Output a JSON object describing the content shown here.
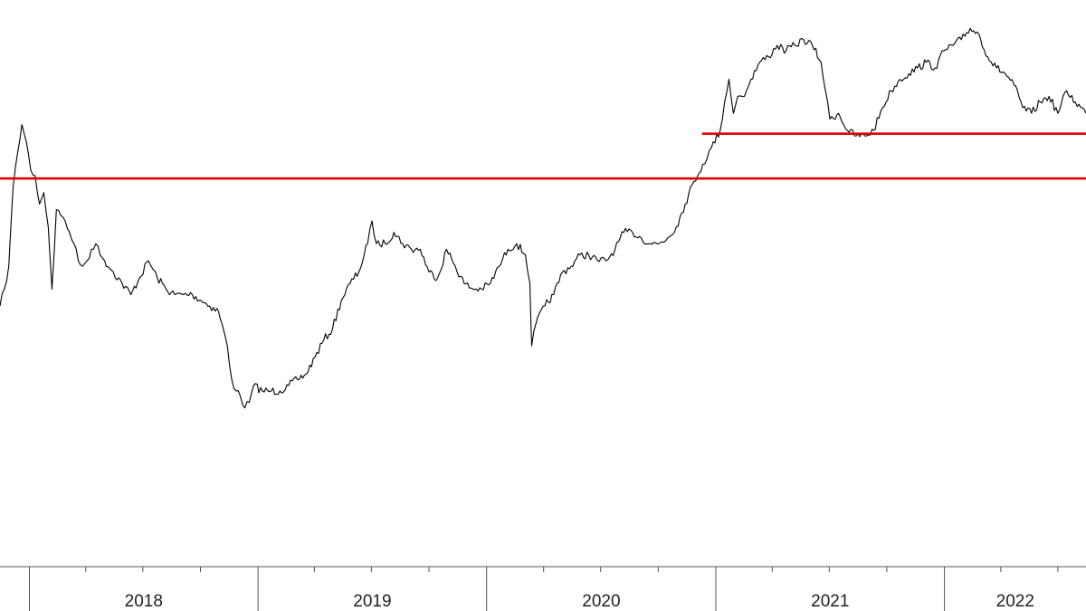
{
  "chart_data": {
    "type": "line",
    "title": "",
    "xlabel": "",
    "ylabel": "",
    "x_range": [
      "2017-11-15",
      "2022-08-15"
    ],
    "y_range": [
      0,
      100
    ],
    "y_axis_visible": false,
    "grid": false,
    "legend": "none",
    "x_tick_labels": [
      "2018",
      "2019",
      "2020",
      "2021",
      "2022"
    ],
    "series": [
      {
        "color": "#000000",
        "points": [
          [
            "2017-11-15",
            46
          ],
          [
            "2017-11-22",
            49
          ],
          [
            "2017-11-29",
            53
          ],
          [
            "2017-12-06",
            67
          ],
          [
            "2017-12-13",
            73
          ],
          [
            "2017-12-20",
            78
          ],
          [
            "2017-12-27",
            75
          ],
          [
            "2018-01-03",
            70
          ],
          [
            "2018-01-10",
            69
          ],
          [
            "2018-01-17",
            64
          ],
          [
            "2018-01-24",
            66
          ],
          [
            "2018-01-31",
            60
          ],
          [
            "2018-02-06",
            49
          ],
          [
            "2018-02-13",
            63
          ],
          [
            "2018-02-20",
            62
          ],
          [
            "2018-02-27",
            61
          ],
          [
            "2018-03-06",
            59
          ],
          [
            "2018-03-13",
            57
          ],
          [
            "2018-03-20",
            54
          ],
          [
            "2018-03-27",
            53
          ],
          [
            "2018-04-03",
            54
          ],
          [
            "2018-04-10",
            56
          ],
          [
            "2018-04-17",
            57
          ],
          [
            "2018-04-24",
            55
          ],
          [
            "2018-05-01",
            54
          ],
          [
            "2018-05-15",
            52
          ],
          [
            "2018-05-29",
            50
          ],
          [
            "2018-06-12",
            48
          ],
          [
            "2018-06-26",
            51
          ],
          [
            "2018-07-10",
            54
          ],
          [
            "2018-07-24",
            51
          ],
          [
            "2018-08-07",
            49
          ],
          [
            "2018-08-21",
            48
          ],
          [
            "2018-09-04",
            48
          ],
          [
            "2018-09-18",
            48
          ],
          [
            "2018-10-02",
            47
          ],
          [
            "2018-10-16",
            46
          ],
          [
            "2018-10-30",
            45
          ],
          [
            "2018-11-13",
            39
          ],
          [
            "2018-11-20",
            33
          ],
          [
            "2018-11-27",
            31
          ],
          [
            "2018-12-04",
            30
          ],
          [
            "2018-12-11",
            28
          ],
          [
            "2018-12-18",
            29
          ],
          [
            "2018-12-25",
            32
          ],
          [
            "2019-01-08",
            31
          ],
          [
            "2019-01-22",
            31
          ],
          [
            "2019-02-05",
            31
          ],
          [
            "2019-02-19",
            32
          ],
          [
            "2019-03-05",
            33
          ],
          [
            "2019-03-19",
            34
          ],
          [
            "2019-04-02",
            37
          ],
          [
            "2019-04-16",
            40
          ],
          [
            "2019-04-30",
            42
          ],
          [
            "2019-05-14",
            47
          ],
          [
            "2019-05-28",
            50
          ],
          [
            "2019-06-11",
            52
          ],
          [
            "2019-06-25",
            57
          ],
          [
            "2019-07-02",
            61
          ],
          [
            "2019-07-09",
            57
          ],
          [
            "2019-07-23",
            57
          ],
          [
            "2019-08-06",
            59
          ],
          [
            "2019-08-20",
            57
          ],
          [
            "2019-09-03",
            56
          ],
          [
            "2019-09-17",
            56
          ],
          [
            "2019-10-01",
            52
          ],
          [
            "2019-10-15",
            51
          ],
          [
            "2019-10-29",
            56
          ],
          [
            "2019-11-12",
            53
          ],
          [
            "2019-11-26",
            50
          ],
          [
            "2019-12-10",
            49
          ],
          [
            "2019-12-24",
            49
          ],
          [
            "2020-01-07",
            50
          ],
          [
            "2020-01-21",
            53
          ],
          [
            "2020-02-04",
            56
          ],
          [
            "2020-02-18",
            57
          ],
          [
            "2020-03-03",
            55
          ],
          [
            "2020-03-10",
            50
          ],
          [
            "2020-03-13",
            39
          ],
          [
            "2020-03-20",
            43
          ],
          [
            "2020-04-03",
            46
          ],
          [
            "2020-04-17",
            48
          ],
          [
            "2020-05-01",
            52
          ],
          [
            "2020-05-15",
            53
          ],
          [
            "2020-05-29",
            55
          ],
          [
            "2020-06-12",
            55
          ],
          [
            "2020-06-26",
            54
          ],
          [
            "2020-07-10",
            54
          ],
          [
            "2020-07-24",
            56
          ],
          [
            "2020-08-07",
            59
          ],
          [
            "2020-08-21",
            59
          ],
          [
            "2020-09-04",
            58
          ],
          [
            "2020-09-18",
            57
          ],
          [
            "2020-10-02",
            57
          ],
          [
            "2020-10-16",
            58
          ],
          [
            "2020-10-30",
            60
          ],
          [
            "2020-11-13",
            64
          ],
          [
            "2020-11-27",
            68
          ],
          [
            "2020-12-11",
            71
          ],
          [
            "2020-12-18",
            72
          ],
          [
            "2020-12-25",
            74
          ],
          [
            "2021-01-08",
            77
          ],
          [
            "2021-01-15",
            82
          ],
          [
            "2021-01-22",
            86
          ],
          [
            "2021-01-29",
            80
          ],
          [
            "2021-02-05",
            83
          ],
          [
            "2021-02-12",
            83
          ],
          [
            "2021-02-19",
            84
          ],
          [
            "2021-02-26",
            86
          ],
          [
            "2021-03-12",
            89
          ],
          [
            "2021-03-26",
            90
          ],
          [
            "2021-04-09",
            92
          ],
          [
            "2021-04-23",
            91
          ],
          [
            "2021-05-07",
            92
          ],
          [
            "2021-05-21",
            93
          ],
          [
            "2021-06-04",
            92
          ],
          [
            "2021-06-18",
            89
          ],
          [
            "2021-06-25",
            84
          ],
          [
            "2021-07-02",
            79
          ],
          [
            "2021-07-16",
            80
          ],
          [
            "2021-07-30",
            77
          ],
          [
            "2021-08-13",
            76
          ],
          [
            "2021-08-27",
            76
          ],
          [
            "2021-09-10",
            77
          ],
          [
            "2021-09-24",
            81
          ],
          [
            "2021-10-08",
            84
          ],
          [
            "2021-10-22",
            86
          ],
          [
            "2021-11-05",
            87
          ],
          [
            "2021-11-19",
            88
          ],
          [
            "2021-12-03",
            89
          ],
          [
            "2021-12-17",
            88
          ],
          [
            "2021-12-31",
            91
          ],
          [
            "2022-01-14",
            92
          ],
          [
            "2022-01-28",
            93
          ],
          [
            "2022-02-11",
            95
          ],
          [
            "2022-02-25",
            94
          ],
          [
            "2022-03-11",
            90
          ],
          [
            "2022-03-25",
            88
          ],
          [
            "2022-04-08",
            87
          ],
          [
            "2022-04-22",
            85
          ],
          [
            "2022-05-06",
            81
          ],
          [
            "2022-05-20",
            80
          ],
          [
            "2022-06-03",
            82
          ],
          [
            "2022-06-17",
            83
          ],
          [
            "2022-07-01",
            80
          ],
          [
            "2022-07-15",
            84
          ],
          [
            "2022-07-29",
            82
          ],
          [
            "2022-08-15",
            80
          ]
        ]
      }
    ],
    "horizontal_lines": [
      {
        "color": "#e00000",
        "y": 68.5,
        "x_start": "2017-11-15",
        "x_end": "2022-08-15"
      },
      {
        "color": "#e00000",
        "y": 76.4,
        "x_start": "2020-12-10",
        "x_end": "2022-08-15"
      }
    ]
  }
}
